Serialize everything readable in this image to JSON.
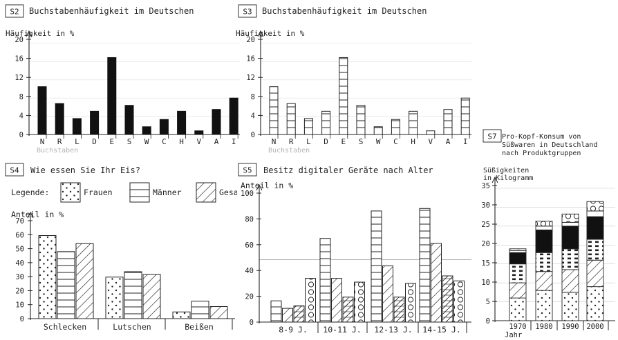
{
  "chart_data": [
    {
      "id": "S2",
      "type": "bar",
      "title": "Buchstabenhäufigkeit im Deutschen",
      "ylabel": "Häufigkeit in %",
      "ylim": [
        0,
        20
      ],
      "yticks": [
        0,
        4,
        8,
        12,
        16,
        20
      ],
      "categories": [
        "N",
        "R",
        "L",
        "D",
        "E",
        "S",
        "W",
        "C",
        "H",
        "V",
        "A",
        "I"
      ],
      "values": [
        10.5,
        6.8,
        3.5,
        5.1,
        16.9,
        6.4,
        1.7,
        3.3,
        5.1,
        0.8,
        5.5,
        8.0
      ],
      "x_footnote": "Buchstaben",
      "style": "solid"
    },
    {
      "id": "S3",
      "type": "bar",
      "title": "Buchstabenhäufigkeit im Deutschen",
      "ylabel": "Häufigkeit in %",
      "ylim": [
        0,
        20
      ],
      "yticks": [
        0,
        4,
        8,
        12,
        16,
        20
      ],
      "categories": [
        "N",
        "R",
        "L",
        "D",
        "E",
        "S",
        "W",
        "C",
        "H",
        "V",
        "A",
        "I"
      ],
      "values": [
        10.5,
        6.8,
        3.5,
        5.1,
        16.9,
        6.4,
        1.7,
        3.3,
        5.1,
        0.8,
        5.5,
        8.0
      ],
      "x_footnote": "Buchstaben",
      "style": "hlines"
    },
    {
      "id": "S4",
      "type": "bar",
      "title": "Wie essen Sie Ihr Eis?",
      "legend_label": "Legende:",
      "ylabel": "Anteil in %",
      "ylim": [
        0,
        70
      ],
      "yticks": [
        0,
        10,
        20,
        30,
        40,
        50,
        60,
        70
      ],
      "categories": [
        "Schlecken",
        "Lutschen",
        "Beißen"
      ],
      "series": [
        {
          "name": "Frauen",
          "pattern": "dots",
          "values": [
            62,
            31,
            5
          ]
        },
        {
          "name": "Männer",
          "pattern": "hlines",
          "values": [
            50,
            35,
            13
          ]
        },
        {
          "name": "Gesamt",
          "pattern": "diag",
          "values": [
            56,
            33,
            9
          ]
        }
      ],
      "legend_visible_names": [
        "Frauen",
        "Männer",
        "Gesa"
      ]
    },
    {
      "id": "S5",
      "type": "bar",
      "title": "Besitz digitaler Geräte nach Alter",
      "ylabel": "Anteil in %",
      "ylim": [
        0,
        100
      ],
      "yticks": [
        0,
        20,
        40,
        60,
        80,
        100
      ],
      "reference_line": 50,
      "categories": [
        "8-9 J.",
        "10-11 J.",
        "12-13 J.",
        "14-15 J."
      ],
      "series": [
        {
          "pattern": "hlines",
          "values": [
            17,
            67,
            89,
            91
          ]
        },
        {
          "pattern": "diag",
          "values": [
            11,
            35,
            45,
            63
          ]
        },
        {
          "pattern": "crosshatch",
          "values": [
            13,
            20,
            20,
            37
          ]
        },
        {
          "pattern": "circles",
          "values": [
            35,
            32,
            31,
            33
          ]
        }
      ]
    },
    {
      "id": "S7",
      "type": "bar",
      "stacked": true,
      "title": "Pro-Kopf-Konsum von Süßwaren in Deutschland nach Produktgruppen",
      "title_lines": [
        "Pro-Kopf-Konsum von",
        "Süßwaren in Deutschland",
        "nach Produktgruppen"
      ],
      "ylabel_lines": [
        "Süßigkeiten",
        "in Kilogramm"
      ],
      "xlabel": "Jahr",
      "ylim": [
        0,
        35
      ],
      "yticks": [
        0,
        5,
        10,
        15,
        20,
        25,
        30,
        35
      ],
      "categories": [
        "1970",
        "1980",
        "1990",
        "2000"
      ],
      "series": [
        {
          "pattern": "dots",
          "values": [
            6,
            8,
            7.5,
            9
          ]
        },
        {
          "pattern": "diag",
          "values": [
            4,
            5,
            6,
            7
          ]
        },
        {
          "pattern": "dashes",
          "values": [
            5,
            5,
            5.5,
            5.5
          ]
        },
        {
          "pattern": "solid",
          "values": [
            3,
            6,
            6,
            6
          ]
        },
        {
          "pattern": "blank",
          "values": [
            0.5,
            1,
            1,
            1.5
          ]
        },
        {
          "pattern": "circles",
          "values": [
            0.5,
            1.3,
            2.2,
            2.5
          ]
        }
      ]
    }
  ]
}
